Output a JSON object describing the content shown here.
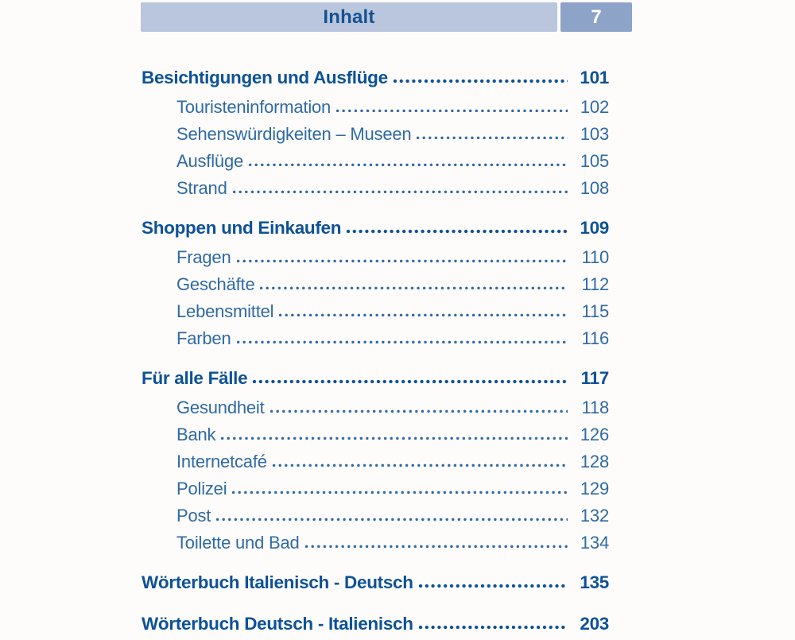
{
  "header": {
    "title": "Inhalt",
    "page_number": "7"
  },
  "colors": {
    "page_bg": "#fdfcfb",
    "bar_bg": "#bac6de",
    "pagebox_bg": "#8da3c7",
    "pagebox_text": "#ffffff",
    "header_text": "#15528f",
    "heading_text": "#0d5296",
    "entry_text": "#2f6aa3"
  },
  "toc": {
    "sections": [
      {
        "title": "Besichtigungen und Ausflüge",
        "page": "101",
        "items": [
          {
            "title": "Touristeninformation",
            "page": "102"
          },
          {
            "title": "Sehenswürdigkeiten – Museen",
            "page": "103"
          },
          {
            "title": "Ausflüge",
            "page": "105"
          },
          {
            "title": "Strand",
            "page": "108"
          }
        ]
      },
      {
        "title": "Shoppen und Einkaufen",
        "page": "109",
        "items": [
          {
            "title": "Fragen",
            "page": "110"
          },
          {
            "title": "Geschäfte",
            "page": "112"
          },
          {
            "title": "Lebensmittel",
            "page": "115"
          },
          {
            "title": "Farben",
            "page": "116"
          }
        ]
      },
      {
        "title": "Für alle Fälle",
        "page": "117",
        "items": [
          {
            "title": "Gesundheit",
            "page": "118"
          },
          {
            "title": "Bank",
            "page": "126"
          },
          {
            "title": "Internetcafé",
            "page": "128"
          },
          {
            "title": "Polizei",
            "page": "129"
          },
          {
            "title": "Post",
            "page": "132"
          },
          {
            "title": "Toilette und Bad",
            "page": "134"
          }
        ]
      },
      {
        "title": "Wörterbuch Italienisch - Deutsch",
        "page": "135",
        "items": []
      },
      {
        "title": "Wörterbuch Deutsch - Italienisch",
        "page": "203",
        "items": []
      }
    ]
  }
}
